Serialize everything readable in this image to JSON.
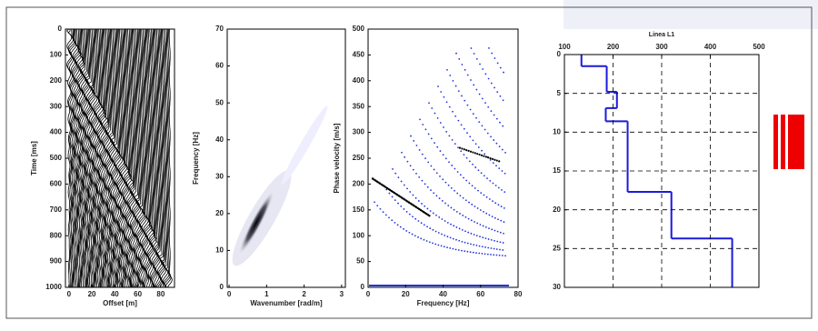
{
  "chart_data": [
    {
      "type": "seismogram",
      "xlabel": "Offset [m]",
      "ylabel": "Time [ms]",
      "xlim": [
        -3,
        92
      ],
      "xticks": [
        0,
        20,
        40,
        60,
        80
      ],
      "ylim": [
        0,
        1000
      ],
      "yticks": [
        0,
        100,
        200,
        300,
        400,
        500,
        600,
        700,
        800,
        900,
        1000
      ],
      "y_inverted": true
    },
    {
      "type": "spectrum",
      "xlabel": "Wavenumber [rad/m]",
      "ylabel": "Frequency [Hz]",
      "xlim": [
        -0.05,
        3.1
      ],
      "xticks": [
        0,
        1,
        2,
        3
      ],
      "ylim": [
        0,
        70
      ],
      "yticks": [
        0,
        10,
        20,
        30,
        40,
        50,
        60,
        70
      ],
      "y_inverted": false
    },
    {
      "type": "dispersion",
      "xlabel": "Frequency [Hz]",
      "ylabel": "Phase velocity [m/s]",
      "xlim": [
        0,
        80
      ],
      "xticks": [
        0,
        20,
        40,
        60,
        80
      ],
      "ylim": [
        0,
        500
      ],
      "yticks": [
        0,
        50,
        100,
        150,
        200,
        250,
        300,
        350,
        400,
        450,
        500
      ],
      "y_inverted": false
    },
    {
      "type": "step",
      "title": "Linea L1",
      "xlim": [
        100,
        500
      ],
      "xticks": [
        100,
        200,
        300,
        400,
        500
      ],
      "ylim": [
        0,
        30
      ],
      "yticks": [
        0,
        5,
        10,
        15,
        20,
        25,
        30
      ],
      "y_inverted": true,
      "grid": true,
      "color": "#1a1adb",
      "depth": [
        0,
        1.5,
        4.8,
        6.9,
        8.6,
        17.7,
        23.7,
        30
      ],
      "velocity": [
        135,
        187,
        208,
        185,
        230,
        320,
        445
      ]
    }
  ]
}
